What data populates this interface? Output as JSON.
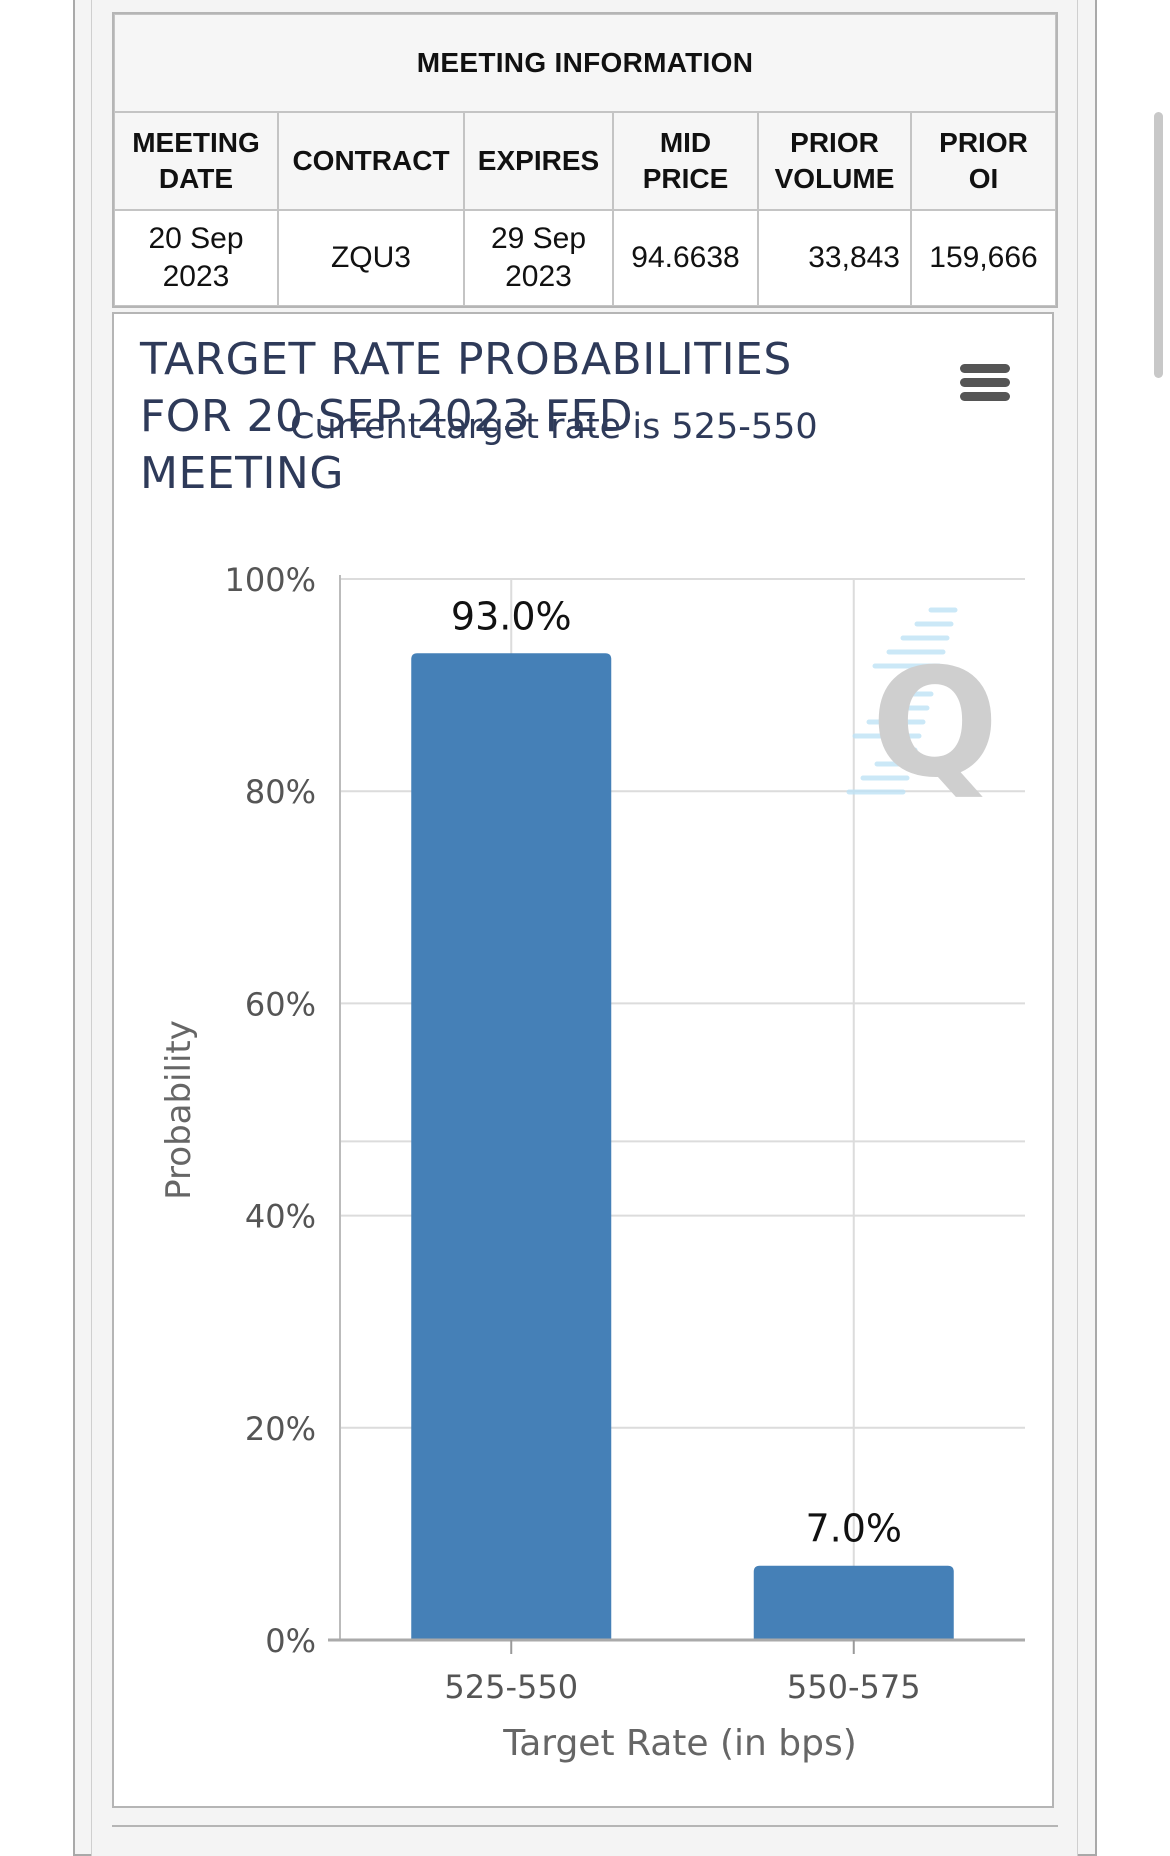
{
  "meeting_info": {
    "caption": "MEETING INFORMATION",
    "headers": [
      {
        "line1": "MEETING",
        "line2": "DATE"
      },
      {
        "line1": "CONTRACT",
        "line2": ""
      },
      {
        "line1": "EXPIRES",
        "line2": ""
      },
      {
        "line1": "MID",
        "line2": "PRICE"
      },
      {
        "line1": "PRIOR",
        "line2": "VOLUME"
      },
      {
        "line1": "PRIOR",
        "line2": "OI"
      }
    ],
    "row": {
      "meeting_date": {
        "line1": "20 Sep",
        "line2": "2023"
      },
      "contract": "ZQU3",
      "expires": {
        "line1": "29 Sep",
        "line2": "2023"
      },
      "mid_price": "94.6638",
      "prior_volume": "33,843",
      "prior_oi": "159,666"
    }
  },
  "chart_data": {
    "type": "bar",
    "title_lines": [
      "TARGET RATE PROBABILITIES",
      "FOR 20 SEP 2023 FED",
      "MEETING"
    ],
    "subtitle": "Current target rate is 525-550",
    "categories": [
      "525-550",
      "550-575"
    ],
    "values": [
      93.0,
      7.0
    ],
    "data_labels": [
      "93.0%",
      "7.0%"
    ],
    "xlabel": "Target Rate (in bps)",
    "ylabel": "Probability",
    "ylim": [
      0,
      100
    ],
    "yticks": [
      "0%",
      "20%",
      "40%",
      "60%",
      "80%",
      "100%"
    ],
    "ytick_values": [
      0,
      20,
      40,
      60,
      80,
      100
    ],
    "grid": true,
    "bar_color": "#4580b7",
    "watermark": "Q"
  },
  "icons": {
    "menu": "hamburger-menu-icon"
  }
}
